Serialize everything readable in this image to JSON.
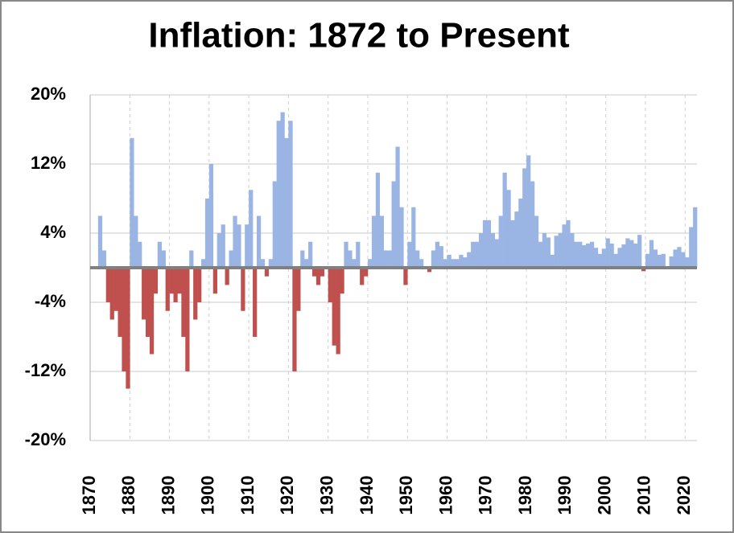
{
  "chart_data": {
    "type": "bar",
    "title": "Inflation: 1872 to Present",
    "x": [
      1872,
      1873,
      1874,
      1875,
      1876,
      1877,
      1878,
      1879,
      1880,
      1881,
      1882,
      1883,
      1884,
      1885,
      1886,
      1887,
      1888,
      1889,
      1890,
      1891,
      1892,
      1893,
      1894,
      1895,
      1896,
      1897,
      1898,
      1899,
      1900,
      1901,
      1902,
      1903,
      1904,
      1905,
      1906,
      1907,
      1908,
      1909,
      1910,
      1911,
      1912,
      1913,
      1914,
      1915,
      1916,
      1917,
      1918,
      1919,
      1920,
      1921,
      1922,
      1923,
      1924,
      1925,
      1926,
      1927,
      1928,
      1929,
      1930,
      1931,
      1932,
      1933,
      1934,
      1935,
      1936,
      1937,
      1938,
      1939,
      1940,
      1941,
      1942,
      1943,
      1944,
      1945,
      1946,
      1947,
      1948,
      1949,
      1950,
      1951,
      1952,
      1953,
      1954,
      1955,
      1956,
      1957,
      1958,
      1959,
      1960,
      1961,
      1962,
      1963,
      1964,
      1965,
      1966,
      1967,
      1968,
      1969,
      1970,
      1971,
      1972,
      1973,
      1974,
      1975,
      1976,
      1977,
      1978,
      1979,
      1980,
      1981,
      1982,
      1983,
      1984,
      1985,
      1986,
      1987,
      1988,
      1989,
      1990,
      1991,
      1992,
      1993,
      1994,
      1995,
      1996,
      1997,
      1998,
      1999,
      2000,
      2001,
      2002,
      2003,
      2004,
      2005,
      2006,
      2007,
      2008,
      2009,
      2010,
      2011,
      2012,
      2013,
      2014,
      2015,
      2016,
      2017,
      2018,
      2019,
      2020,
      2021,
      2022
    ],
    "values": [
      6,
      2,
      -4,
      -6,
      -5,
      -8,
      -12,
      -14,
      15,
      6,
      3,
      -6,
      -8,
      -10,
      -3,
      3,
      2,
      -5,
      -3,
      -4,
      -3,
      -8,
      -12,
      2,
      -6,
      -4,
      1,
      8,
      12,
      -3,
      4,
      5,
      -2,
      2,
      6,
      5,
      -5,
      5,
      9,
      -8,
      6,
      1,
      -1,
      1,
      10,
      17,
      18,
      15,
      17,
      -12,
      -5,
      2,
      1,
      3,
      -1,
      -2,
      -1,
      0,
      -4,
      -9,
      -10,
      -3,
      3,
      2,
      1,
      3,
      -2,
      -1,
      1,
      6,
      11,
      6,
      2,
      2,
      10,
      14,
      7,
      -2,
      3,
      7,
      2,
      1,
      0,
      -0.5,
      2,
      3,
      2.5,
      1,
      1.5,
      1,
      1,
      1.5,
      1.2,
      1.8,
      3,
      3,
      4,
      5.5,
      5.5,
      4,
      3.3,
      6,
      11,
      9,
      5.5,
      6.5,
      8,
      11.5,
      13,
      10,
      6,
      3,
      4,
      3.5,
      1.5,
      3.7,
      4,
      5,
      5.5,
      4,
      3,
      3,
      2.6,
      2.8,
      3,
      2.3,
      1.6,
      2.2,
      3.4,
      2.8,
      1.6,
      2.3,
      2.7,
      3.4,
      3.2,
      2.8,
      3.8,
      -0.4,
      1.6,
      3.2,
      2.1,
      1.5,
      1.6,
      0.1,
      1.3,
      2.1,
      2.4,
      1.8,
      1.2,
      4.7,
      7
    ],
    "colors": {
      "positive": "#9ab5e4",
      "negative": "#c0504d"
    },
    "xlim": [
      1870,
      2023
    ],
    "xticks": [
      1870,
      1880,
      1890,
      1900,
      1910,
      1920,
      1930,
      1940,
      1950,
      1960,
      1970,
      1980,
      1990,
      2000,
      2010,
      2020
    ],
    "ylim": [
      -20,
      20
    ],
    "yticks": [
      {
        "value": -20,
        "label": "-20%"
      },
      {
        "value": -12,
        "label": "-12%"
      },
      {
        "value": -4,
        "label": "-4%"
      },
      {
        "value": 4,
        "label": "4%"
      },
      {
        "value": 12,
        "label": "12%"
      },
      {
        "value": 20,
        "label": "20%"
      }
    ],
    "grid": true
  }
}
